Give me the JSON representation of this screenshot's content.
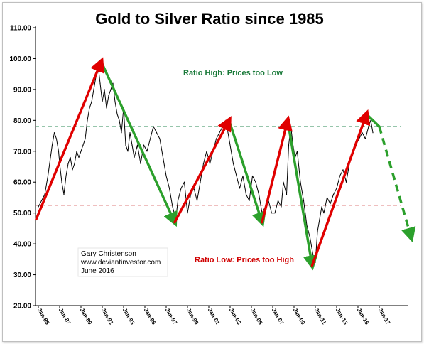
{
  "chart_data": {
    "type": "line",
    "title": "Gold to Silver Ratio since 1985",
    "xlabel": "",
    "ylabel": "",
    "ylim": [
      20,
      110
    ],
    "xlim": [
      "1985-01",
      "2017-06"
    ],
    "y_ticks": [
      "20.00",
      "30.00",
      "40.00",
      "50.00",
      "60.00",
      "70.00",
      "80.00",
      "90.00",
      "100.00",
      "110.00"
    ],
    "x_ticks": [
      "Jan-85",
      "Jan-87",
      "Jan-89",
      "Jan-91",
      "Jan-93",
      "Jan-95",
      "Jan-97",
      "Jan-99",
      "Jan-01",
      "Jan-03",
      "Jan-05",
      "Jan-07",
      "Jan-09",
      "Jan-11",
      "Jan-13",
      "Jan-15",
      "Jan-17"
    ],
    "grid": false,
    "colors": {
      "line": "#000000",
      "up_arrow": "#e00000",
      "down_arrow": "#2ca02c",
      "high_ref": "#2e8b57",
      "low_ref": "#c00000"
    },
    "series": [
      {
        "x": [
          1985.0,
          1985.3,
          1985.6,
          1985.9,
          1986.1,
          1986.3,
          1986.5,
          1986.7,
          1986.9,
          1987.0,
          1987.2,
          1987.4,
          1987.6,
          1987.8,
          1988.0,
          1988.2,
          1988.4,
          1988.6,
          1988.8,
          1989.0,
          1989.2,
          1989.4,
          1989.6,
          1989.8,
          1990.0,
          1990.2,
          1990.4,
          1990.6,
          1990.8,
          1991.0,
          1991.2,
          1991.4,
          1991.6,
          1991.8,
          1992.0,
          1992.2,
          1992.4,
          1992.6,
          1992.8,
          1993.0,
          1993.2,
          1993.4,
          1993.6,
          1993.8,
          1994.0,
          1994.3,
          1994.6,
          1994.9,
          1995.2,
          1995.5,
          1995.8,
          1996.1,
          1996.4,
          1996.7,
          1997.0,
          1997.3,
          1997.6,
          1997.9,
          1998.1,
          1998.4,
          1998.7,
          1999.0,
          1999.3,
          1999.6,
          1999.9,
          2000.2,
          2000.5,
          2000.8,
          2001.1,
          2001.4,
          2001.7,
          2002.0,
          2002.3,
          2002.6,
          2002.9,
          2003.1,
          2003.3,
          2003.6,
          2003.9,
          2004.2,
          2004.5,
          2004.8,
          2005.1,
          2005.4,
          2005.7,
          2006.0,
          2006.3,
          2006.6,
          2006.9,
          2007.2,
          2007.5,
          2007.8,
          2008.0,
          2008.3,
          2008.5,
          2008.7,
          2008.9,
          2009.1,
          2009.3,
          2009.6,
          2009.9,
          2010.2,
          2010.5,
          2010.8,
          2011.0,
          2011.2,
          2011.4,
          2011.6,
          2011.8,
          2012.1,
          2012.4,
          2012.7,
          2013.0,
          2013.3,
          2013.6,
          2013.9,
          2014.2,
          2014.5,
          2014.8,
          2015.1,
          2015.4,
          2015.7,
          2016.0,
          2016.2,
          2016.4
        ],
        "values": [
          52,
          54,
          56,
          62,
          67,
          72,
          76,
          74,
          70,
          66,
          60,
          56,
          62,
          66,
          68,
          64,
          66,
          70,
          68,
          70,
          72,
          74,
          80,
          84,
          86,
          90,
          94,
          98,
          92,
          86,
          90,
          84,
          88,
          90,
          92,
          86,
          82,
          80,
          76,
          84,
          72,
          70,
          76,
          72,
          68,
          72,
          66,
          72,
          70,
          74,
          78,
          76,
          74,
          68,
          62,
          58,
          52,
          48,
          54,
          58,
          60,
          50,
          56,
          58,
          54,
          60,
          66,
          70,
          66,
          70,
          74,
          76,
          78,
          80,
          74,
          70,
          66,
          62,
          58,
          62,
          56,
          54,
          62,
          60,
          56,
          50,
          52,
          54,
          50,
          50,
          54,
          52,
          60,
          56,
          72,
          78,
          72,
          68,
          70,
          60,
          54,
          46,
          42,
          36,
          34,
          44,
          48,
          52,
          50,
          55,
          53,
          56,
          58,
          62,
          64,
          60,
          66,
          70,
          72,
          74,
          76,
          74,
          78,
          80,
          76
        ]
      }
    ],
    "reference_lines": [
      {
        "label": "Ratio High",
        "y": 78
      },
      {
        "label": "Ratio Low",
        "y": 52.5
      }
    ],
    "trend_arrows": {
      "up": [
        [
          [
            1984.8,
            48
          ],
          [
            1990.9,
            99
          ]
        ],
        [
          [
            1997.8,
            47
          ],
          [
            2002.9,
            80
          ]
        ],
        [
          [
            2006.0,
            47
          ],
          [
            2008.4,
            80
          ]
        ],
        [
          [
            2010.7,
            33
          ],
          [
            2015.8,
            82
          ]
        ]
      ],
      "down": [
        [
          [
            1990.9,
            99
          ],
          [
            1997.8,
            47
          ]
        ],
        [
          [
            2002.9,
            80
          ],
          [
            2006.0,
            47
          ]
        ],
        [
          [
            2008.4,
            80
          ],
          [
            2010.7,
            33
          ]
        ],
        [
          [
            2015.8,
            82
          ],
          [
            2017.0,
            78
          ]
        ]
      ],
      "projection": [
        [
          2017.0,
          78
        ],
        [
          2020.0,
          42
        ]
      ]
    },
    "annotations": {
      "high": "Ratio High:  Prices too Low",
      "low": "Ratio Low:  Prices too High",
      "credit": [
        "Gary Christenson",
        "www.deviantinvestor.com",
        "June 2016"
      ]
    }
  }
}
